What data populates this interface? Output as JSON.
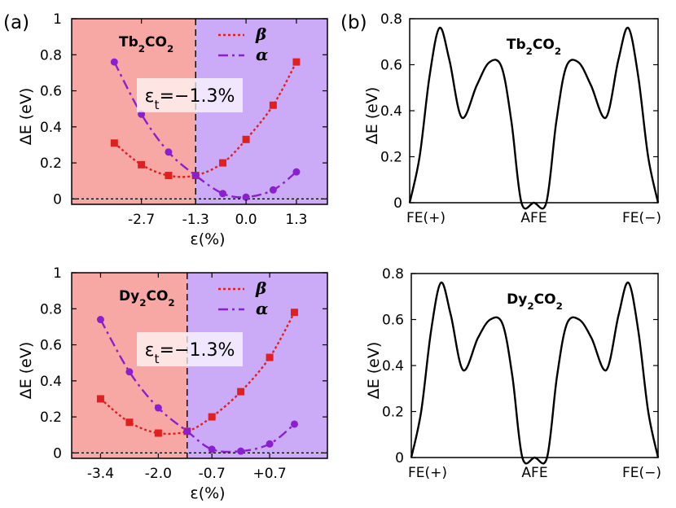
{
  "panel_labels": {
    "a": "(a)",
    "b": "(b)"
  },
  "colors": {
    "beta": "#e02020",
    "alpha": "#8a1fd0",
    "bg_left": "#f8a8a4",
    "bg_right": "#cbaaf8",
    "curve": "#000000"
  },
  "chart_data": [
    {
      "id": "a-top",
      "type": "line",
      "material_main": "Tb",
      "material_sub1": "2",
      "material_mid": "CO",
      "material_sub2": "2",
      "xlabel": "ε(%)",
      "ylabel": "ΔE (eV)",
      "xlim": [
        -4.5,
        2.1
      ],
      "ylim": [
        -0.03,
        1.0
      ],
      "yticks": [
        0,
        0.2,
        0.4,
        0.6,
        0.8,
        1
      ],
      "ytick_labels": [
        "0",
        "0.2",
        "0.4",
        "0.6",
        "0.8",
        "1"
      ],
      "xticks": [
        -2.7,
        -1.3,
        0.0,
        1.3
      ],
      "xtick_labels": [
        "-2.7",
        "-1.3",
        "0.0",
        "1.3"
      ],
      "transition_x": -1.3,
      "strain_label_main": "ε",
      "strain_label_sub": "t",
      "strain_label_rest": "=−1.3%",
      "series": [
        {
          "name": "β",
          "style": "dotted",
          "marker": "square",
          "x": [
            -3.4,
            -2.7,
            -2.0,
            -1.3,
            -0.6,
            0.0,
            0.7,
            1.3
          ],
          "y": [
            0.31,
            0.19,
            0.13,
            0.13,
            0.2,
            0.33,
            0.52,
            0.76
          ]
        },
        {
          "name": "α",
          "style": "dashdot",
          "marker": "circle",
          "x": [
            -3.4,
            -2.7,
            -2.0,
            -1.3,
            -0.6,
            0.0,
            0.7,
            1.3
          ],
          "y": [
            0.76,
            0.47,
            0.26,
            0.13,
            0.03,
            0.01,
            0.05,
            0.15
          ]
        }
      ]
    },
    {
      "id": "a-bottom",
      "type": "line",
      "material_main": "Dy",
      "material_sub1": "2",
      "material_mid": "CO",
      "material_sub2": "2",
      "xlabel": "ε(%)",
      "ylabel": "ΔE (eV)",
      "xlim": [
        -4.1,
        2.1
      ],
      "ylim": [
        -0.03,
        1.0
      ],
      "yticks": [
        0,
        0.2,
        0.4,
        0.6,
        0.8,
        1
      ],
      "ytick_labels": [
        "0",
        "0.2",
        "0.4",
        "0.6",
        "0.8",
        "1"
      ],
      "xticks": [
        -3.4,
        -2.0,
        -0.7,
        0.7
      ],
      "xtick_labels": [
        "-3.4",
        "-2.0",
        "-0.7",
        "+0.7"
      ],
      "transition_x": -1.3,
      "strain_label_main": "ε",
      "strain_label_sub": "t",
      "strain_label_rest": "=−1.3%",
      "series": [
        {
          "name": "β",
          "style": "dotted",
          "marker": "square",
          "x": [
            -3.4,
            -2.7,
            -2.0,
            -1.3,
            -0.7,
            0.0,
            0.7,
            1.3
          ],
          "y": [
            0.3,
            0.17,
            0.11,
            0.12,
            0.2,
            0.34,
            0.53,
            0.78
          ]
        },
        {
          "name": "α",
          "style": "dashdot",
          "marker": "circle",
          "x": [
            -3.4,
            -2.7,
            -2.0,
            -1.3,
            -0.7,
            0.0,
            0.7,
            1.3
          ],
          "y": [
            0.74,
            0.45,
            0.25,
            0.12,
            0.02,
            0.01,
            0.05,
            0.16
          ]
        }
      ]
    },
    {
      "id": "b-top",
      "type": "line",
      "material_main": "Tb",
      "material_sub1": "2",
      "material_mid": "CO",
      "material_sub2": "2",
      "ylabel": "ΔE (eV)",
      "xlim": [
        0,
        1
      ],
      "ylim": [
        0,
        0.8
      ],
      "yticks": [
        0,
        0.2,
        0.4,
        0.6,
        0.8
      ],
      "ytick_labels": [
        "0",
        "0.2",
        "0.4",
        "0.6",
        "0.8"
      ],
      "xtick_labels": [
        "FE(+)",
        "AFE",
        "FE(−)"
      ],
      "series": [
        {
          "name": "path",
          "x": [
            0.0,
            0.04,
            0.08,
            0.12,
            0.16,
            0.21,
            0.27,
            0.32,
            0.37,
            0.41,
            0.45,
            0.5,
            0.55,
            0.59,
            0.63,
            0.68,
            0.73,
            0.79,
            0.84,
            0.88,
            0.92,
            0.96,
            1.0
          ],
          "y": [
            0.0,
            0.2,
            0.55,
            0.76,
            0.62,
            0.37,
            0.51,
            0.61,
            0.59,
            0.35,
            0.0,
            0.0,
            0.0,
            0.35,
            0.59,
            0.61,
            0.51,
            0.37,
            0.62,
            0.76,
            0.55,
            0.2,
            0.0
          ]
        }
      ]
    },
    {
      "id": "b-bottom",
      "type": "line",
      "material_main": "Dy",
      "material_sub1": "2",
      "material_mid": "CO",
      "material_sub2": "2",
      "ylabel": "ΔE (eV)",
      "xlim": [
        0,
        1
      ],
      "ylim": [
        0,
        0.8
      ],
      "yticks": [
        0,
        0.2,
        0.4,
        0.6,
        0.8
      ],
      "ytick_labels": [
        "0",
        "0.2",
        "0.4",
        "0.6",
        "0.8"
      ],
      "xtick_labels": [
        "FE(+)",
        "AFE",
        "FE(−)"
      ],
      "series": [
        {
          "name": "path",
          "x": [
            0.0,
            0.04,
            0.08,
            0.12,
            0.16,
            0.21,
            0.27,
            0.32,
            0.37,
            0.41,
            0.45,
            0.5,
            0.55,
            0.59,
            0.63,
            0.68,
            0.73,
            0.79,
            0.84,
            0.88,
            0.92,
            0.96,
            1.0
          ],
          "y": [
            0.0,
            0.2,
            0.55,
            0.76,
            0.62,
            0.38,
            0.52,
            0.6,
            0.58,
            0.35,
            0.0,
            0.0,
            0.0,
            0.35,
            0.58,
            0.6,
            0.52,
            0.38,
            0.62,
            0.76,
            0.55,
            0.2,
            0.0
          ]
        }
      ]
    }
  ]
}
